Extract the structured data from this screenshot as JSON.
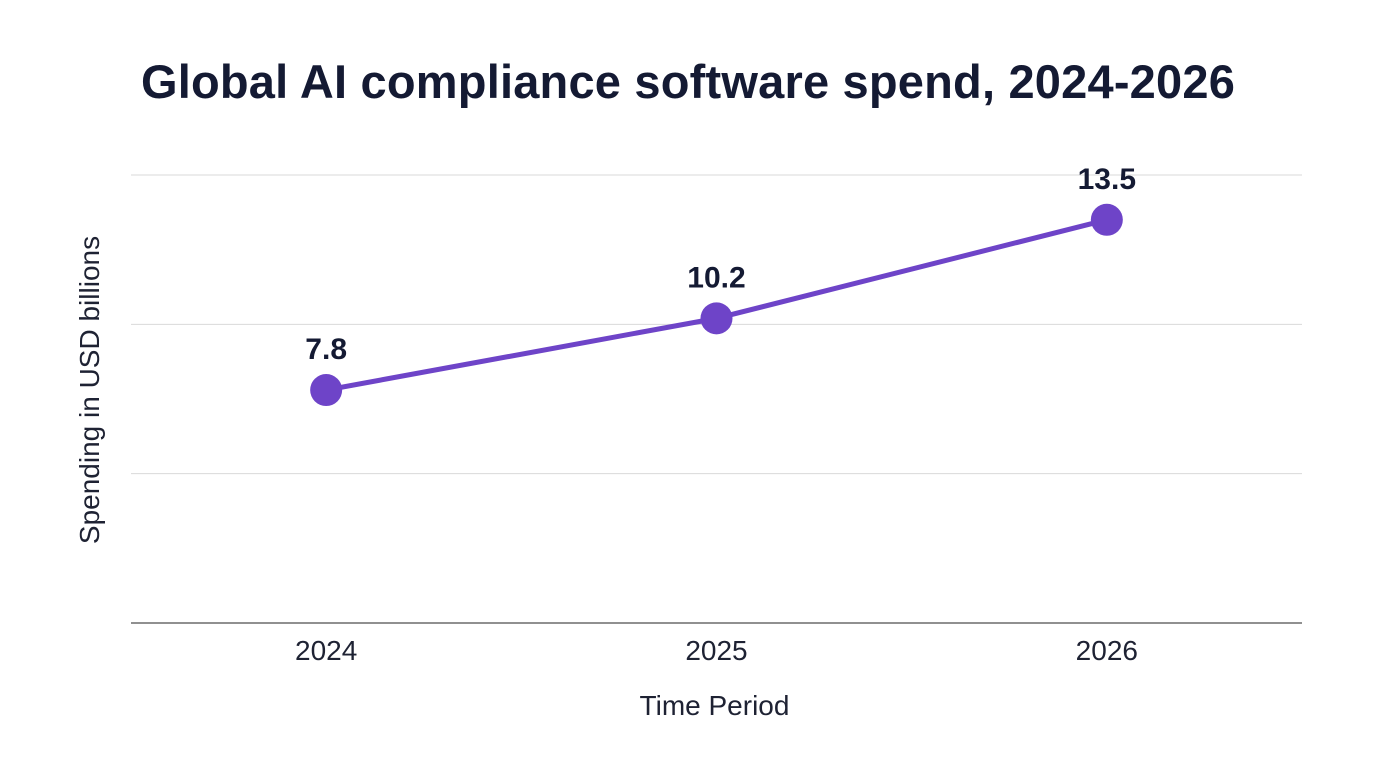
{
  "chart_data": {
    "type": "line",
    "title": "Global AI compliance software spend, 2024-2026",
    "xlabel": "Time Period",
    "ylabel": "Spending in USD billions",
    "categories": [
      "2024",
      "2025",
      "2026"
    ],
    "series": [
      {
        "values": [
          7.8,
          10.2,
          13.5
        ],
        "color": "#6e44c8"
      }
    ],
    "ylim": [
      0,
      16
    ],
    "gridlines": [
      5,
      10,
      15
    ],
    "grid": true,
    "ytick_labels_shown": false,
    "legend": "none"
  }
}
